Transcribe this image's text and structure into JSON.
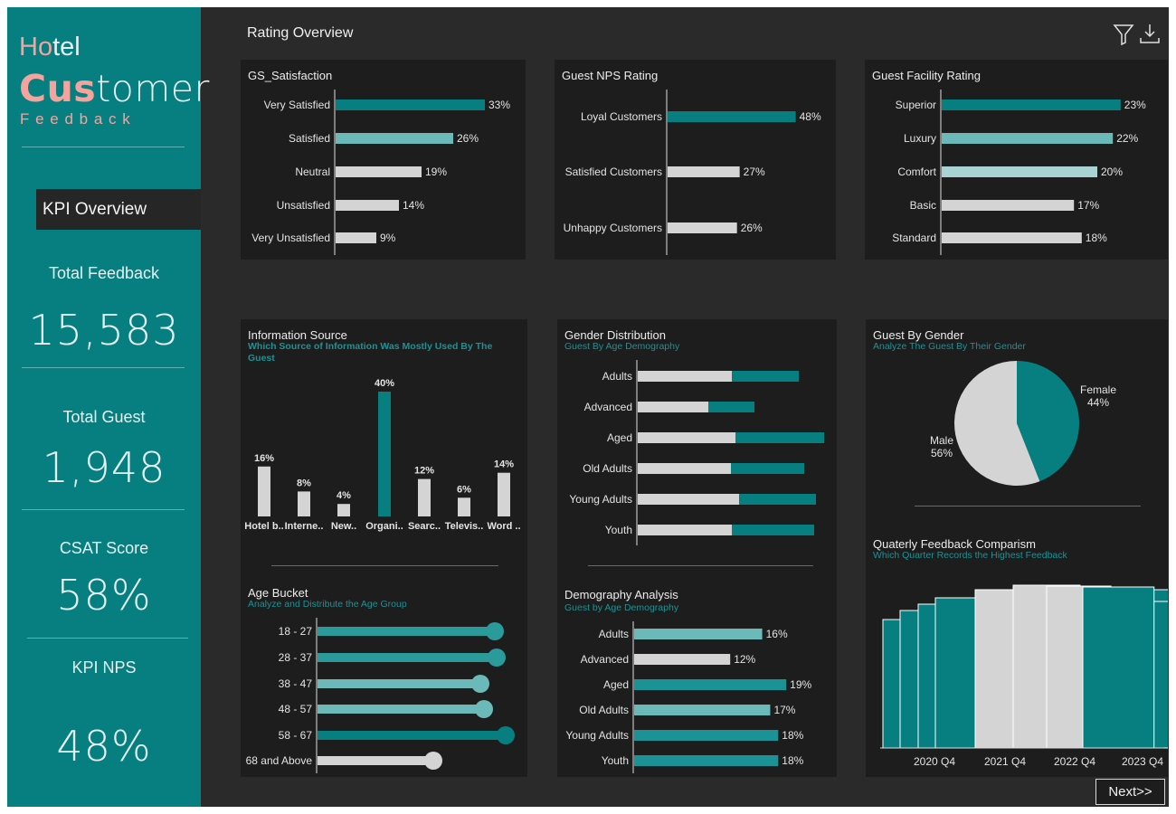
{
  "colors": {
    "teal": "#077f81",
    "teal_light": "#6cb9b9",
    "teal_pale": "#a9d2d2",
    "grey": "#d4d4d4",
    "panel": "#1d1d1d",
    "text": "#e8e8e8",
    "subtext": "#1a9296",
    "accent": "#f19e97"
  },
  "sidebar": {
    "logo_ho": "Ho",
    "logo_tel": "tel",
    "logo_cus": "Cus",
    "logo_tomer": "tomer",
    "logo_feedback": "F e e d b a c k",
    "nav_label": "KPI Overview",
    "total_feedback_label": "Total Feedback",
    "total_feedback_value": "15,583",
    "total_guest_label": "Total Guest",
    "total_guest_value": "1,948",
    "csat_label": "CSAT Score",
    "csat_value": "58%",
    "nps_label": "KPI NPS",
    "nps_value": "48%"
  },
  "header": {
    "title": "Rating Overview",
    "filter_icon": "filter-icon",
    "download_icon": "download-icon"
  },
  "next_button": "Next>>",
  "chart_data": [
    {
      "id": "gs",
      "type": "bar",
      "orientation": "horizontal",
      "title": "GS_Satisfaction",
      "categories": [
        "Very Satisfied",
        "Satisfied",
        "Neutral",
        "Unsatisfied",
        "Very Unsatisfied"
      ],
      "values": [
        33,
        26,
        19,
        14,
        9
      ],
      "labels": [
        "33%",
        "26%",
        "19%",
        "14%",
        "9%"
      ],
      "colors": [
        "#077f81",
        "#6cb9b9",
        "#d4d4d4",
        "#d4d4d4",
        "#d4d4d4"
      ]
    },
    {
      "id": "nps",
      "type": "bar",
      "orientation": "horizontal",
      "title": "Guest NPS Rating",
      "categories": [
        "Loyal Customers",
        "Satisfied Customers",
        "Unhappy Customers"
      ],
      "values": [
        48,
        27,
        26
      ],
      "labels": [
        "48%",
        "27%",
        "26%"
      ],
      "colors": [
        "#077f81",
        "#d4d4d4",
        "#d4d4d4"
      ]
    },
    {
      "id": "facility",
      "type": "bar",
      "orientation": "horizontal",
      "title": "Guest Facility Rating",
      "categories": [
        "Superior",
        "Luxury",
        "Comfort",
        "Basic",
        "Standard"
      ],
      "values": [
        23,
        22,
        20,
        17,
        18
      ],
      "labels": [
        "23%",
        "22%",
        "20%",
        "17%",
        "18%"
      ],
      "colors": [
        "#077f81",
        "#6cb9b9",
        "#a9d2d2",
        "#d4d4d4",
        "#d4d4d4"
      ]
    },
    {
      "id": "info",
      "type": "bar",
      "orientation": "vertical",
      "title": "Information Source",
      "subtitle": "Which Source of Information Was Mostly Used By The Guest",
      "categories": [
        "Hotel b..",
        "Interne..",
        "New..",
        "Organi..",
        "Searc..",
        "Televis..",
        "Word .."
      ],
      "values": [
        16,
        8,
        4,
        40,
        12,
        6,
        14
      ],
      "labels": [
        "16%",
        "8%",
        "4%",
        "40%",
        "12%",
        "6%",
        "14%"
      ],
      "colors": [
        "#d4d4d4",
        "#d4d4d4",
        "#d4d4d4",
        "#077f81",
        "#d4d4d4",
        "#d4d4d4",
        "#d4d4d4"
      ],
      "ylim": [
        0,
        40
      ]
    },
    {
      "id": "gender",
      "type": "bar",
      "orientation": "horizontal",
      "stacked": true,
      "title": "Gender Distribution",
      "subtitle": "Guest By Age Demography",
      "categories": [
        "Adults",
        "Advanced",
        "Aged",
        "Old Adults",
        "Young Adults",
        "Youth"
      ],
      "series": [
        {
          "name": "Male",
          "color": "#d4d4d4",
          "values": [
            104,
            78,
            108,
            103,
            112,
            104
          ]
        },
        {
          "name": "Female",
          "color": "#077f81",
          "values": [
            74,
            51,
            98,
            81,
            85,
            91
          ]
        }
      ]
    },
    {
      "id": "pie",
      "type": "pie",
      "title": "Guest By Gender",
      "subtitle": "Analyze The Guest By Their Gender",
      "slices": [
        {
          "name": "Female",
          "value": 44,
          "label": "44%",
          "color": "#077f81"
        },
        {
          "name": "Male",
          "value": 56,
          "label": "56%",
          "color": "#d4d4d4"
        }
      ]
    },
    {
      "id": "age",
      "type": "lollipop",
      "orientation": "horizontal",
      "title": "Age Bucket",
      "subtitle": "Analyze and Distribute the Age Group",
      "categories": [
        "18 - 27",
        "28 - 37",
        "38 - 47",
        "48 - 57",
        "58 - 67",
        "68 and Above"
      ],
      "values": [
        98,
        99,
        90,
        92,
        104,
        64
      ],
      "xlim": [
        0,
        104
      ],
      "colors": [
        "#2a9a9a",
        "#2a9a9a",
        "#6cb9b9",
        "#6cb9b9",
        "#077f81",
        "#d4d4d4"
      ]
    },
    {
      "id": "demo",
      "type": "bar",
      "orientation": "horizontal",
      "title": "Demography Analysis",
      "subtitle": "Guest by Age Demography",
      "categories": [
        "Adults",
        "Advanced",
        "Aged",
        "Old Adults",
        "Young Adults",
        "Youth"
      ],
      "values": [
        16,
        12,
        19,
        17,
        18,
        18
      ],
      "labels": [
        "16%",
        "12%",
        "19%",
        "17%",
        "18%",
        "18%"
      ],
      "colors": [
        "#6cb9b9",
        "#d4d4d4",
        "#1a9296",
        "#6cb9b9",
        "#1a9296",
        "#1a9296"
      ]
    },
    {
      "id": "quarter",
      "type": "area",
      "title": "Quaterly Feedback Comparism",
      "subtitle": "Which Quarter Records the Highest Feedback",
      "categories": [
        "2020 Q4",
        "2021 Q4",
        "2022 Q4",
        "2023 Q4"
      ]
    }
  ]
}
